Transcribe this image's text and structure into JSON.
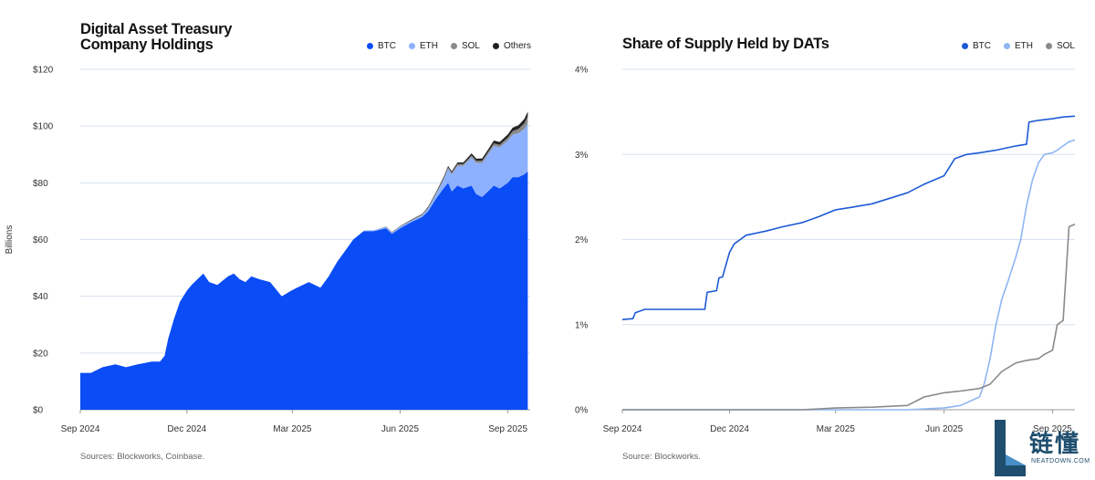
{
  "left": {
    "title": "Digital Asset Treasury\nCompany Holdings",
    "source": "Sources: Blockworks, Coinbase.",
    "legend": [
      {
        "label": "BTC",
        "color": "#0a4cf5"
      },
      {
        "label": "ETH",
        "color": "#8db1ff"
      },
      {
        "label": "SOL",
        "color": "#8a8a8a"
      },
      {
        "label": "Others",
        "color": "#222222"
      }
    ]
  },
  "right": {
    "title": "Share of Supply Held by DATs",
    "source": "Source: Blockworks.",
    "legend": [
      {
        "label": "BTC",
        "color": "#1e5ad6"
      },
      {
        "label": "ETH",
        "color": "#8eb6f3"
      },
      {
        "label": "SOL",
        "color": "#8a8a8a"
      }
    ]
  },
  "watermark": {
    "cn": "链懂",
    "en": "NEATDOWN.COM"
  },
  "chart_data": [
    {
      "type": "area",
      "title": "Digital Asset Treasury Company Holdings",
      "ylabel": "Billions",
      "xlabel": "",
      "stacked": true,
      "ylim": [
        0,
        120
      ],
      "yticks": [
        "$0",
        "$20",
        "$40",
        "$60",
        "$80",
        "$100",
        "$120"
      ],
      "ytick_values": [
        0,
        20,
        40,
        60,
        80,
        100,
        120
      ],
      "xlim": [
        "2024-09-01",
        "2025-09-20"
      ],
      "xticks": [
        "Sep 2024",
        "Dec 2024",
        "Mar 2025",
        "Jun 2025",
        "Sep 2025"
      ],
      "xtick_dates": [
        "2024-09-01",
        "2024-12-01",
        "2025-03-01",
        "2025-06-01",
        "2025-09-01"
      ],
      "grid": true,
      "legend_position": "top-right",
      "x": [
        "2024-09-01",
        "2024-09-10",
        "2024-09-20",
        "2024-10-01",
        "2024-10-10",
        "2024-10-20",
        "2024-11-01",
        "2024-11-08",
        "2024-11-12",
        "2024-11-15",
        "2024-11-20",
        "2024-11-25",
        "2024-12-01",
        "2024-12-05",
        "2024-12-10",
        "2024-12-15",
        "2024-12-20",
        "2024-12-27",
        "2025-01-05",
        "2025-01-10",
        "2025-01-15",
        "2025-01-20",
        "2025-01-25",
        "2025-02-01",
        "2025-02-10",
        "2025-02-20",
        "2025-02-28",
        "2025-03-05",
        "2025-03-10",
        "2025-03-15",
        "2025-03-25",
        "2025-04-01",
        "2025-04-08",
        "2025-04-15",
        "2025-04-22",
        "2025-05-01",
        "2025-05-10",
        "2025-05-20",
        "2025-05-25",
        "2025-06-01",
        "2025-06-10",
        "2025-06-20",
        "2025-06-25",
        "2025-07-01",
        "2025-07-08",
        "2025-07-12",
        "2025-07-15",
        "2025-07-20",
        "2025-07-25",
        "2025-08-01",
        "2025-08-05",
        "2025-08-10",
        "2025-08-15",
        "2025-08-20",
        "2025-08-25",
        "2025-09-01",
        "2025-09-05",
        "2025-09-10",
        "2025-09-15",
        "2025-09-18"
      ],
      "series": [
        {
          "name": "BTC",
          "values": [
            13,
            13,
            15,
            16,
            15,
            16,
            17,
            17,
            19,
            25,
            32,
            38,
            42,
            44,
            46,
            48,
            45,
            44,
            47,
            48,
            46,
            45,
            47,
            46,
            45,
            40,
            42,
            43,
            44,
            45,
            43,
            47,
            52,
            56,
            60,
            63,
            63,
            64,
            62,
            64,
            66,
            68,
            70,
            74,
            78,
            80,
            77,
            79,
            78,
            79,
            76,
            75,
            77,
            79,
            78,
            80,
            82,
            82,
            83,
            84
          ]
        },
        {
          "name": "ETH",
          "values": [
            0,
            0,
            0,
            0,
            0,
            0,
            0,
            0,
            0,
            0,
            0,
            0,
            0,
            0,
            0,
            0,
            0,
            0,
            0,
            0,
            0,
            0,
            0,
            0,
            0,
            0,
            0,
            0,
            0,
            0,
            0,
            0,
            0,
            0,
            0,
            0.2,
            0.3,
            0.4,
            0.4,
            0.5,
            0.5,
            0.6,
            1,
            1.5,
            3,
            5,
            6,
            7,
            8,
            10,
            11,
            12,
            13,
            14,
            14.5,
            15,
            15,
            15.5,
            16,
            17
          ]
        },
        {
          "name": "SOL",
          "values": [
            0,
            0,
            0,
            0,
            0,
            0,
            0,
            0,
            0,
            0,
            0,
            0,
            0,
            0,
            0,
            0,
            0,
            0,
            0,
            0,
            0,
            0,
            0,
            0,
            0,
            0,
            0,
            0,
            0,
            0,
            0,
            0,
            0,
            0,
            0,
            0,
            0,
            0.1,
            0.1,
            0.2,
            0.2,
            0.3,
            0.3,
            0.4,
            0.5,
            0.5,
            0.5,
            0.6,
            0.6,
            0.7,
            0.7,
            0.8,
            0.8,
            0.9,
            0.9,
            1,
            1.2,
            1.5,
            2,
            2.5
          ]
        },
        {
          "name": "Others",
          "values": [
            0,
            0,
            0,
            0,
            0,
            0,
            0,
            0,
            0,
            0,
            0,
            0,
            0,
            0,
            0,
            0,
            0,
            0,
            0,
            0,
            0,
            0,
            0,
            0,
            0,
            0,
            0,
            0,
            0,
            0,
            0,
            0,
            0,
            0,
            0,
            0,
            0,
            0.1,
            0.1,
            0.1,
            0.2,
            0.2,
            0.3,
            0.3,
            0.4,
            0.5,
            0.5,
            0.6,
            0.6,
            0.7,
            0.8,
            0.8,
            0.9,
            1,
            1,
            1.1,
            1.2,
            1.3,
            1.5,
            1.6
          ]
        }
      ]
    },
    {
      "type": "line",
      "title": "Share of Supply Held by DATs",
      "xlabel": "",
      "ylabel": "",
      "ylim": [
        0,
        4
      ],
      "yticks": [
        "0%",
        "1%",
        "2%",
        "3%",
        "4%"
      ],
      "ytick_values": [
        0,
        1,
        2,
        3,
        4
      ],
      "xlim": [
        "2024-09-01",
        "2025-09-20"
      ],
      "xticks": [
        "Sep 2024",
        "Dec 2024",
        "Mar 2025",
        "Jun 2025",
        "Sep 2025"
      ],
      "xtick_dates": [
        "2024-09-01",
        "2024-12-01",
        "2025-03-01",
        "2025-06-01",
        "2025-09-01"
      ],
      "grid": true,
      "legend_position": "top-right",
      "series": [
        {
          "name": "BTC",
          "x": [
            "2024-09-01",
            "2024-09-10",
            "2024-09-12",
            "2024-09-20",
            "2024-11-10",
            "2024-11-12",
            "2024-11-20",
            "2024-11-22",
            "2024-11-25",
            "2024-12-01",
            "2024-12-05",
            "2024-12-10",
            "2024-12-15",
            "2025-01-01",
            "2025-01-15",
            "2025-02-01",
            "2025-02-15",
            "2025-03-01",
            "2025-03-15",
            "2025-04-01",
            "2025-04-15",
            "2025-05-01",
            "2025-05-15",
            "2025-06-01",
            "2025-06-10",
            "2025-06-20",
            "2025-07-01",
            "2025-07-15",
            "2025-08-01",
            "2025-08-10",
            "2025-08-12",
            "2025-08-20",
            "2025-09-01",
            "2025-09-10",
            "2025-09-20"
          ],
          "values": [
            1.06,
            1.07,
            1.14,
            1.18,
            1.18,
            1.38,
            1.4,
            1.55,
            1.56,
            1.85,
            1.95,
            2.0,
            2.05,
            2.1,
            2.15,
            2.2,
            2.27,
            2.35,
            2.38,
            2.42,
            2.48,
            2.55,
            2.65,
            2.75,
            2.95,
            3.0,
            3.02,
            3.05,
            3.1,
            3.12,
            3.38,
            3.4,
            3.42,
            3.44,
            3.45
          ]
        },
        {
          "name": "ETH",
          "x": [
            "2024-09-01",
            "2025-05-01",
            "2025-06-01",
            "2025-06-15",
            "2025-07-01",
            "2025-07-05",
            "2025-07-10",
            "2025-07-15",
            "2025-07-20",
            "2025-07-25",
            "2025-08-01",
            "2025-08-05",
            "2025-08-10",
            "2025-08-15",
            "2025-08-20",
            "2025-08-25",
            "2025-09-01",
            "2025-09-05",
            "2025-09-10",
            "2025-09-15",
            "2025-09-20"
          ],
          "values": [
            0.0,
            0.0,
            0.02,
            0.05,
            0.15,
            0.3,
            0.6,
            1.0,
            1.3,
            1.5,
            1.8,
            2.0,
            2.4,
            2.7,
            2.9,
            3.0,
            3.02,
            3.05,
            3.1,
            3.15,
            3.17
          ]
        },
        {
          "name": "SOL",
          "x": [
            "2024-09-01",
            "2025-02-01",
            "2025-03-01",
            "2025-04-01",
            "2025-05-01",
            "2025-05-15",
            "2025-06-01",
            "2025-06-15",
            "2025-07-01",
            "2025-07-10",
            "2025-07-20",
            "2025-08-01",
            "2025-08-10",
            "2025-08-20",
            "2025-08-25",
            "2025-09-01",
            "2025-09-05",
            "2025-09-10",
            "2025-09-15",
            "2025-09-20"
          ],
          "values": [
            0.0,
            0.0,
            0.02,
            0.03,
            0.05,
            0.15,
            0.2,
            0.22,
            0.25,
            0.3,
            0.45,
            0.55,
            0.58,
            0.6,
            0.65,
            0.7,
            1.0,
            1.05,
            2.15,
            2.18
          ]
        }
      ]
    }
  ]
}
